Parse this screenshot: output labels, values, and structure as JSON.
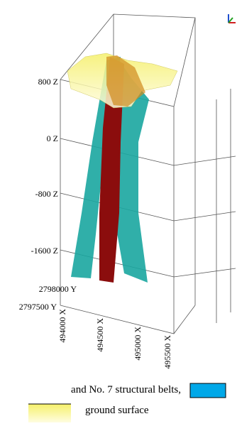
{
  "axes": {
    "z_labels": [
      "800 Z",
      "0 Z",
      "-800 Z",
      "-1600 Z"
    ],
    "y_labels": [
      "2798000 Y",
      "2797500 Y"
    ],
    "x_labels": [
      "494000 X",
      "494500 X",
      "495000 X",
      "495500 X"
    ]
  },
  "legend": {
    "items": [
      "and No. 7 structural belts,",
      "ground surface"
    ]
  }
}
